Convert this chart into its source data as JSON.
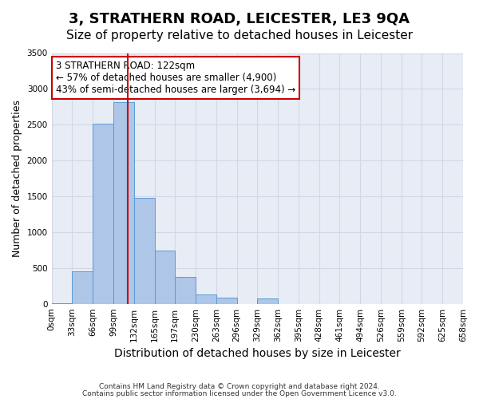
{
  "title": "3, STRATHERN ROAD, LEICESTER, LE3 9QA",
  "subtitle": "Size of property relative to detached houses in Leicester",
  "xlabel": "Distribution of detached houses by size in Leicester",
  "ylabel": "Number of detached properties",
  "footnote1": "Contains HM Land Registry data © Crown copyright and database right 2024.",
  "footnote2": "Contains public sector information licensed under the Open Government Licence v3.0.",
  "bin_labels": [
    "0sqm",
    "33sqm",
    "66sqm",
    "99sqm",
    "132sqm",
    "165sqm",
    "197sqm",
    "230sqm",
    "263sqm",
    "296sqm",
    "329sqm",
    "362sqm",
    "395sqm",
    "428sqm",
    "461sqm",
    "494sqm",
    "526sqm",
    "559sqm",
    "592sqm",
    "625sqm",
    "658sqm"
  ],
  "bar_values": [
    10,
    450,
    2510,
    2820,
    1480,
    740,
    380,
    130,
    80,
    0,
    70,
    0,
    0,
    0,
    0,
    0,
    0,
    0,
    0,
    0
  ],
  "bar_color": "#aec6e8",
  "bar_edge_color": "#5b9bd5",
  "red_line_x": 3.7,
  "red_line_color": "#cc0000",
  "annotation_text": "3 STRATHERN ROAD: 122sqm\n← 57% of detached houses are smaller (4,900)\n43% of semi-detached houses are larger (3,694) →",
  "annotation_box_color": "#ffffff",
  "annotation_box_edge": "#cc0000",
  "ylim": [
    0,
    3500
  ],
  "yticks": [
    0,
    500,
    1000,
    1500,
    2000,
    2500,
    3000,
    3500
  ],
  "grid_color": "#d0d8e8",
  "background_color": "#e8edf5",
  "title_fontsize": 13,
  "subtitle_fontsize": 11,
  "axis_fontsize": 9,
  "tick_fontsize": 7.5,
  "annotation_fontsize": 8.5
}
